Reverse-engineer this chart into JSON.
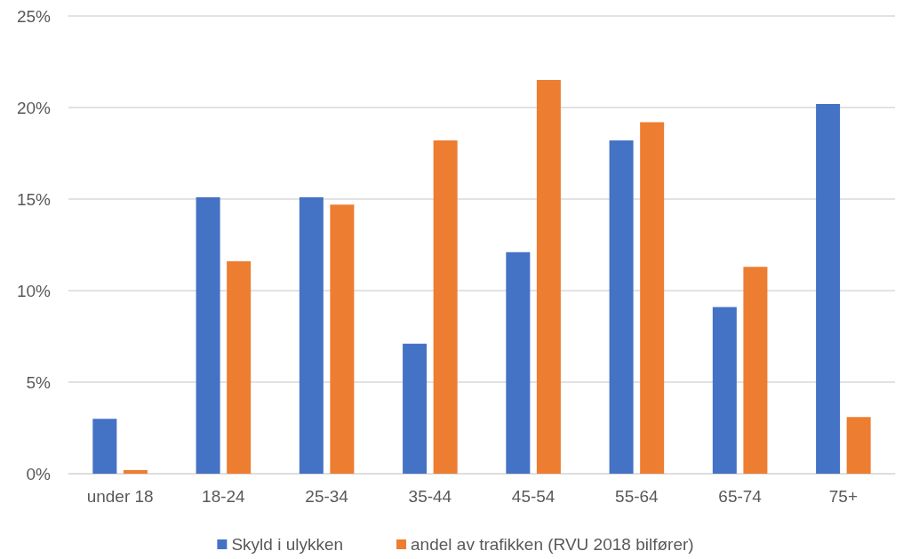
{
  "chart_data": {
    "type": "bar",
    "categories": [
      "under 18",
      "18-24",
      "25-34",
      "35-44",
      "45-54",
      "55-64",
      "65-74",
      "75+"
    ],
    "series": [
      {
        "name": "Skyld i ulykken",
        "color": "#4472c4",
        "values": [
          3.0,
          15.1,
          15.1,
          7.1,
          12.1,
          18.2,
          9.1,
          20.2
        ]
      },
      {
        "name": "andel av trafikken (RVU 2018 bilfører)",
        "color": "#ed7d31",
        "values": [
          0.2,
          11.6,
          14.7,
          18.2,
          21.5,
          19.2,
          11.3,
          3.1
        ]
      }
    ],
    "ylim": [
      0,
      25
    ],
    "yticks": [
      {
        "value": 0,
        "label": "0%"
      },
      {
        "value": 5,
        "label": "5%"
      },
      {
        "value": 10,
        "label": "10%"
      },
      {
        "value": 15,
        "label": "15%"
      },
      {
        "value": 20,
        "label": "20%"
      },
      {
        "value": 25,
        "label": "25%"
      }
    ],
    "grid": "y",
    "legend": "bottom"
  }
}
